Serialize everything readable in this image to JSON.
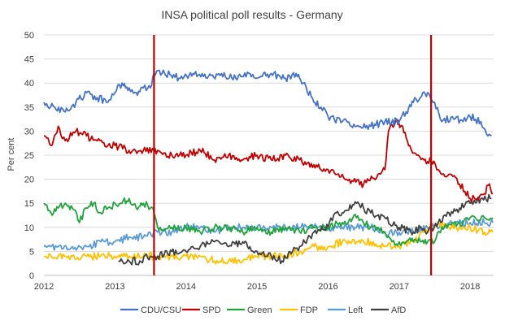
{
  "chart_data": {
    "type": "line",
    "title": "INSA political poll results - Germany",
    "ylabel": "Per cent",
    "xlabel": "",
    "ylim": [
      0,
      50
    ],
    "xlim": [
      2012,
      2018.33
    ],
    "yticks": [
      0,
      5,
      10,
      15,
      20,
      25,
      30,
      35,
      40,
      45,
      50
    ],
    "xticks": [
      2012,
      2013,
      2014,
      2015,
      2016,
      2017,
      2018
    ],
    "grid": "horizontal",
    "legend_position": "bottom",
    "vertical_markers": [
      {
        "x": 2013.55,
        "color": "#c00000"
      },
      {
        "x": 2017.45,
        "color": "#c00000"
      }
    ],
    "series": [
      {
        "name": "CDU/CSU",
        "color": "#4472c4",
        "x": [
          2012.0,
          2012.15,
          2012.3,
          2012.45,
          2012.6,
          2012.75,
          2012.9,
          2013.0,
          2013.1,
          2013.2,
          2013.3,
          2013.4,
          2013.5,
          2013.55,
          2013.7,
          2013.9,
          2014.1,
          2014.3,
          2014.5,
          2014.7,
          2014.9,
          2015.0,
          2015.2,
          2015.4,
          2015.55,
          2015.65,
          2015.8,
          2015.9,
          2016.0,
          2016.2,
          2016.4,
          2016.6,
          2016.8,
          2017.0,
          2017.1,
          2017.2,
          2017.3,
          2017.4,
          2017.5,
          2017.6,
          2017.75,
          2017.9,
          2018.0,
          2018.15,
          2018.25,
          2018.3
        ],
        "values": [
          36,
          35,
          34,
          36,
          38,
          37,
          36,
          38,
          40,
          39,
          38,
          39,
          39,
          42,
          42,
          41,
          42,
          41,
          42,
          41,
          42,
          41,
          42,
          41,
          42,
          40,
          36,
          35,
          33,
          32,
          31,
          31,
          32,
          32,
          34,
          36,
          37,
          38,
          36,
          32,
          33,
          32,
          33,
          32,
          29,
          29
        ]
      },
      {
        "name": "SPD",
        "color": "#c00000",
        "x": [
          2012.0,
          2012.1,
          2012.2,
          2012.3,
          2012.45,
          2012.6,
          2012.75,
          2012.9,
          2013.0,
          2013.2,
          2013.4,
          2013.6,
          2013.8,
          2014.0,
          2014.2,
          2014.4,
          2014.6,
          2014.8,
          2015.0,
          2015.2,
          2015.4,
          2015.6,
          2015.8,
          2015.9,
          2016.0,
          2016.2,
          2016.3,
          2016.5,
          2016.7,
          2016.8,
          2016.85,
          2016.95,
          2017.05,
          2017.15,
          2017.25,
          2017.35,
          2017.45,
          2017.55,
          2017.7,
          2017.85,
          2018.0,
          2018.1,
          2018.2,
          2018.27,
          2018.32
        ],
        "values": [
          29,
          27,
          31,
          28,
          30,
          29,
          28,
          27,
          27,
          26,
          26,
          26,
          25,
          25,
          26,
          24,
          25,
          24,
          25,
          24,
          25,
          24,
          23,
          22,
          22,
          21,
          20,
          19,
          21,
          22,
          30,
          32,
          31,
          27,
          25,
          24,
          24,
          22,
          21,
          19,
          16,
          16,
          17,
          19,
          17
        ]
      },
      {
        "name": "Green",
        "color": "#1fa33a",
        "x": [
          2012.0,
          2012.1,
          2012.2,
          2012.3,
          2012.4,
          2012.5,
          2012.6,
          2012.7,
          2012.8,
          2012.9,
          2013.0,
          2013.1,
          2013.2,
          2013.3,
          2013.4,
          2013.5,
          2013.55,
          2013.6,
          2013.8,
          2014.0,
          2014.2,
          2014.4,
          2014.6,
          2014.8,
          2015.0,
          2015.2,
          2015.4,
          2015.6,
          2015.8,
          2016.0,
          2016.2,
          2016.4,
          2016.6,
          2016.8,
          2016.9,
          2017.0,
          2017.1,
          2017.2,
          2017.3,
          2017.4,
          2017.5,
          2017.6,
          2017.75,
          2017.9,
          2018.0,
          2018.2,
          2018.32
        ],
        "values": [
          15,
          13,
          14,
          15,
          14,
          11,
          14,
          15,
          13,
          14,
          15,
          15,
          16,
          14,
          15,
          14,
          13,
          10,
          10,
          10,
          9,
          10,
          10,
          9,
          10,
          9,
          10,
          9,
          10,
          10,
          11,
          12,
          10,
          9,
          7,
          7,
          7,
          7,
          7,
          7,
          7,
          10,
          11,
          11,
          12,
          12,
          12
        ]
      },
      {
        "name": "FDP",
        "color": "#ffc000",
        "x": [
          2012.0,
          2012.2,
          2012.4,
          2012.6,
          2012.8,
          2013.0,
          2013.2,
          2013.4,
          2013.6,
          2013.8,
          2014.0,
          2014.2,
          2014.4,
          2014.6,
          2014.8,
          2015.0,
          2015.2,
          2015.4,
          2015.6,
          2015.8,
          2016.0,
          2016.2,
          2016.4,
          2016.6,
          2016.8,
          2017.0,
          2017.2,
          2017.35,
          2017.45,
          2017.55,
          2017.7,
          2017.9,
          2018.0,
          2018.2,
          2018.32
        ],
        "values": [
          4,
          4,
          4,
          4,
          4,
          4,
          4,
          4,
          4,
          4,
          4,
          4,
          3,
          3,
          3,
          4,
          4,
          4,
          5,
          6,
          6,
          7,
          7,
          7,
          6,
          6,
          7,
          9,
          10,
          11,
          10,
          10,
          10,
          9,
          9
        ]
      },
      {
        "name": "Left",
        "color": "#5b9bd5",
        "x": [
          2012.0,
          2012.2,
          2012.4,
          2012.6,
          2012.8,
          2013.0,
          2013.2,
          2013.4,
          2013.6,
          2013.8,
          2014.0,
          2014.2,
          2014.4,
          2014.6,
          2014.8,
          2015.0,
          2015.2,
          2015.4,
          2015.6,
          2015.8,
          2016.0,
          2016.2,
          2016.4,
          2016.6,
          2016.8,
          2017.0,
          2017.2,
          2017.4,
          2017.6,
          2017.8,
          2018.0,
          2018.2,
          2018.32
        ],
        "values": [
          6,
          6,
          6,
          6,
          7,
          7,
          8,
          8,
          9,
          9,
          10,
          10,
          9,
          10,
          10,
          10,
          10,
          10,
          10,
          10,
          10,
          10,
          10,
          10,
          9,
          9,
          9,
          10,
          10,
          11,
          11,
          11,
          11
        ]
      },
      {
        "name": "AfD",
        "color": "#404040",
        "x": [
          2013.05,
          2013.2,
          2013.35,
          2013.5,
          2013.6,
          2013.8,
          2014.0,
          2014.2,
          2014.4,
          2014.6,
          2014.8,
          2014.9,
          2015.0,
          2015.2,
          2015.35,
          2015.5,
          2015.6,
          2015.8,
          2016.0,
          2016.1,
          2016.2,
          2016.4,
          2016.5,
          2016.6,
          2016.8,
          2017.0,
          2017.2,
          2017.3,
          2017.4,
          2017.55,
          2017.7,
          2017.85,
          2018.0,
          2018.15,
          2018.3
        ],
        "values": [
          3,
          3,
          3,
          4,
          4,
          5,
          5,
          6,
          7,
          6,
          7,
          6,
          5,
          4,
          3,
          5,
          6,
          9,
          10,
          13,
          13,
          15,
          14,
          13,
          12,
          10,
          9,
          10,
          9,
          11,
          13,
          14,
          15,
          16,
          16
        ]
      }
    ]
  }
}
